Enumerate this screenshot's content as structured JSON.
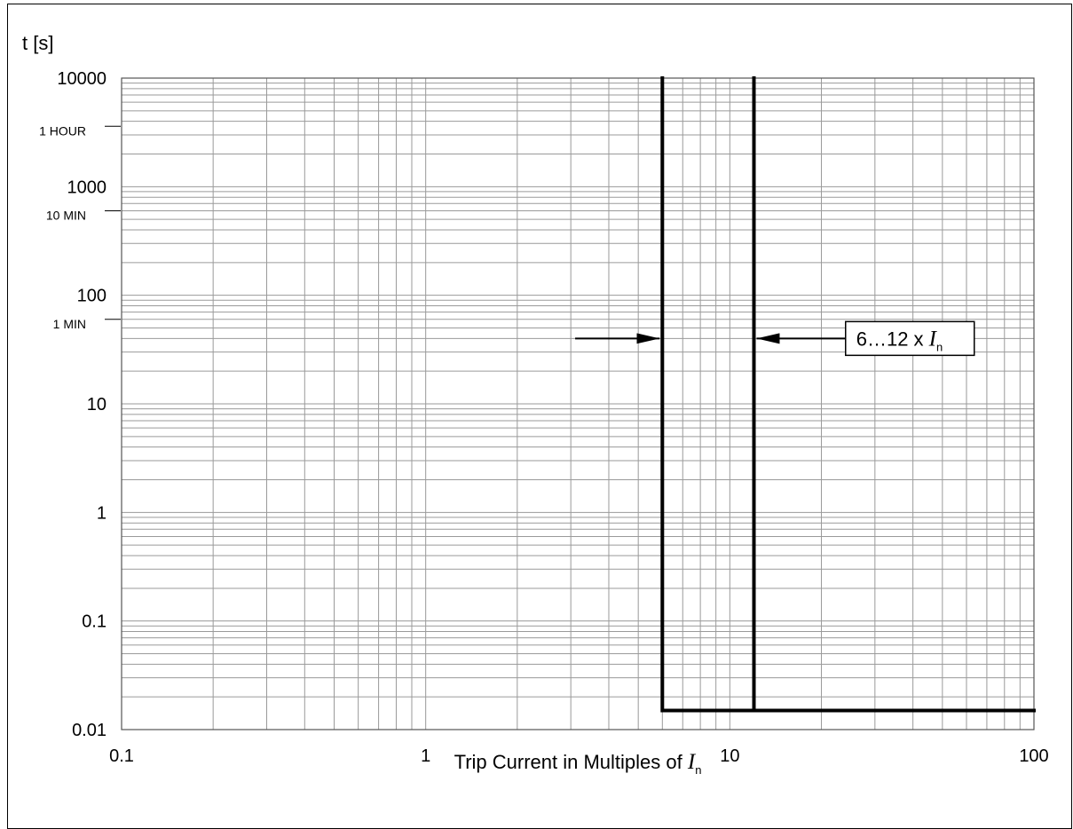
{
  "chart_data": {
    "type": "line",
    "xscale": "log",
    "yscale": "log",
    "xlim": [
      0.1,
      100
    ],
    "ylim": [
      0.01,
      10000
    ],
    "grid": true,
    "ylabel": "t [s]",
    "xlabel": {
      "prefix": "Trip Current in Multiples of ",
      "symbol": "I",
      "subscript": "n"
    },
    "x_ticks": [
      {
        "value": 0.1,
        "label": "0.1"
      },
      {
        "value": 1,
        "label": "1"
      },
      {
        "value": 10,
        "label": "10"
      },
      {
        "value": 100,
        "label": "100"
      }
    ],
    "y_ticks": [
      {
        "value": 0.01,
        "label": "0.01"
      },
      {
        "value": 0.1,
        "label": "0.1"
      },
      {
        "value": 1,
        "label": "1"
      },
      {
        "value": 10,
        "label": "10"
      },
      {
        "value": 100,
        "label": "100"
      },
      {
        "value": 1000,
        "label": "1000"
      },
      {
        "value": 10000,
        "label": "10000"
      }
    ],
    "time_markers": [
      {
        "value": 60,
        "label": "1 MIN"
      },
      {
        "value": 600,
        "label": "10 MIN"
      },
      {
        "value": 3600,
        "label": "1 HOUR"
      }
    ],
    "series": [
      {
        "points": [
          [
            6,
            10000
          ],
          [
            6,
            0.015
          ],
          [
            100,
            0.015
          ]
        ]
      },
      {
        "points": [
          [
            12,
            10000
          ],
          [
            12,
            0.015
          ]
        ]
      }
    ],
    "annotation": {
      "text": "6…12 x ",
      "symbol": "I",
      "subscript": "n",
      "arrow_y": 40,
      "left_arrow_from_x": 3.1,
      "left_arrow_to_x": 6,
      "right_arrow_from_x": 21,
      "right_arrow_to_x": 12
    }
  }
}
